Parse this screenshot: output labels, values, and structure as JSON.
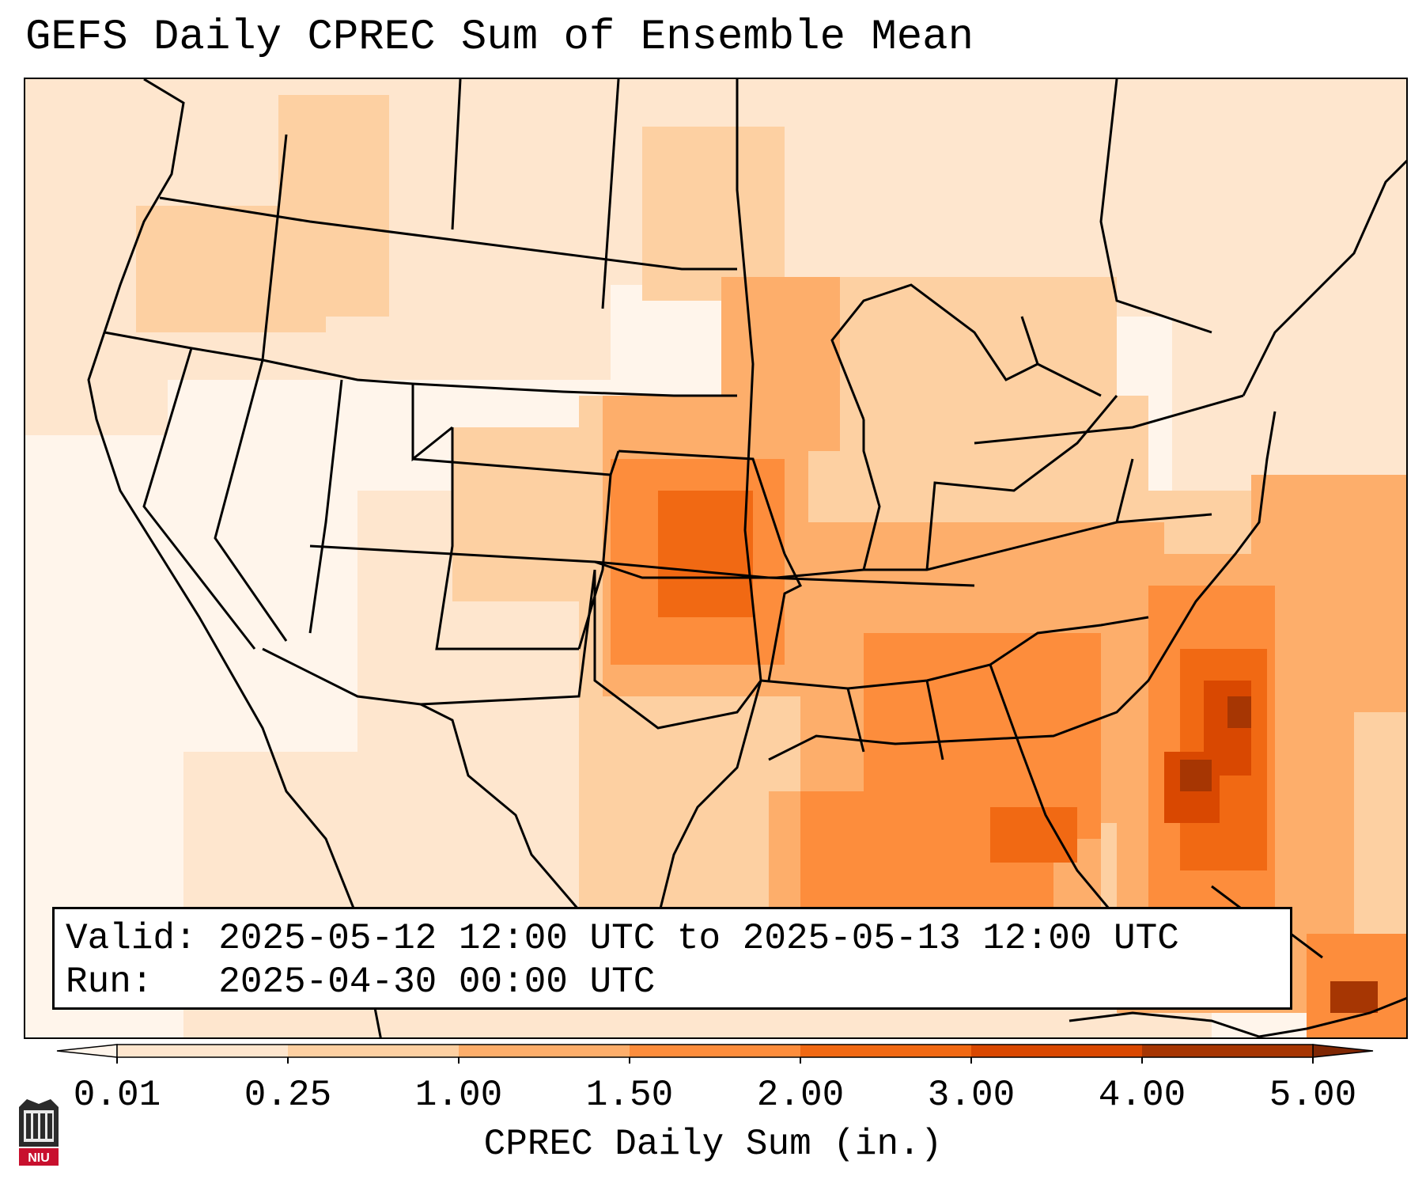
{
  "title": "GEFS Daily CPREC Sum of Ensemble Mean",
  "info": {
    "valid_line": "Valid: 2025-05-12 12:00 UTC to 2025-05-13 12:00 UTC",
    "run_line": "Run:   2025-04-30 00:00 UTC"
  },
  "colorbar": {
    "title": "CPREC Daily Sum (in.)",
    "ticks": [
      "0.01",
      "0.25",
      "1.00",
      "1.50",
      "2.00",
      "3.00",
      "4.00",
      "5.00"
    ],
    "colors": [
      "#fee6ce",
      "#fdd0a2",
      "#fdae6b",
      "#fd8d3c",
      "#f16913",
      "#d94801",
      "#a63603"
    ],
    "under_color": "#fff5eb",
    "over_color": "#7f2704"
  },
  "logo": {
    "text": "NIU",
    "color": "#c8102e"
  }
}
